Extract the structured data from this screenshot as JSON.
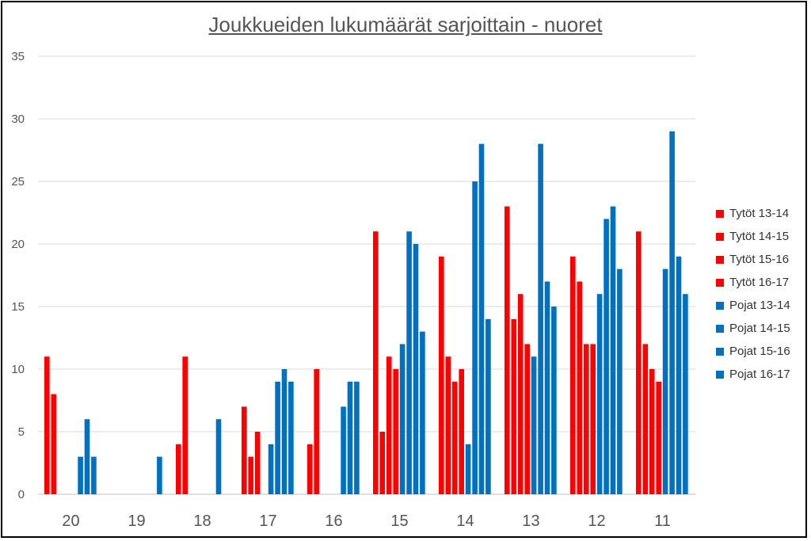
{
  "chart_data": {
    "type": "bar",
    "title": "Joukkueiden lukumäärät sarjoittain - nuoret",
    "xlabel": "",
    "ylabel": "",
    "ylim": [
      0,
      35
    ],
    "yticks": [
      0,
      5,
      10,
      15,
      20,
      25,
      30,
      35
    ],
    "grid": true,
    "legend_position": "right",
    "categories": [
      "20",
      "19",
      "18",
      "17",
      "16",
      "15",
      "14",
      "13",
      "12",
      "11"
    ],
    "series": [
      {
        "name": "Tytöt 13-14",
        "color": "#ff0000",
        "values": [
          11,
          null,
          4,
          7,
          4,
          21,
          19,
          23,
          19,
          21
        ]
      },
      {
        "name": "Tytöt 14-15",
        "color": "#ff0000",
        "values": [
          8,
          null,
          11,
          3,
          10,
          5,
          11,
          14,
          17,
          12
        ]
      },
      {
        "name": "Tytöt 15-16",
        "color": "#ff0000",
        "values": [
          null,
          null,
          null,
          5,
          null,
          11,
          9,
          16,
          12,
          10
        ]
      },
      {
        "name": "Tytöt 16-17",
        "color": "#ff0000",
        "values": [
          null,
          null,
          null,
          null,
          null,
          10,
          10,
          12,
          12,
          9
        ]
      },
      {
        "name": "Pojat 13-14",
        "color": "#0070c0",
        "values": [
          null,
          null,
          null,
          4,
          null,
          12,
          4,
          11,
          16,
          18
        ]
      },
      {
        "name": "Pojat 14-15",
        "color": "#0070c0",
        "values": [
          3,
          null,
          null,
          9,
          7,
          21,
          25,
          28,
          22,
          29
        ]
      },
      {
        "name": "Pojat 15-16",
        "color": "#0070c0",
        "values": [
          6,
          null,
          6,
          10,
          9,
          20,
          28,
          17,
          23,
          19
        ]
      },
      {
        "name": "Pojat 16-17",
        "color": "#0070c0",
        "values": [
          3,
          3,
          null,
          9,
          9,
          13,
          14,
          15,
          18,
          16
        ]
      }
    ]
  }
}
